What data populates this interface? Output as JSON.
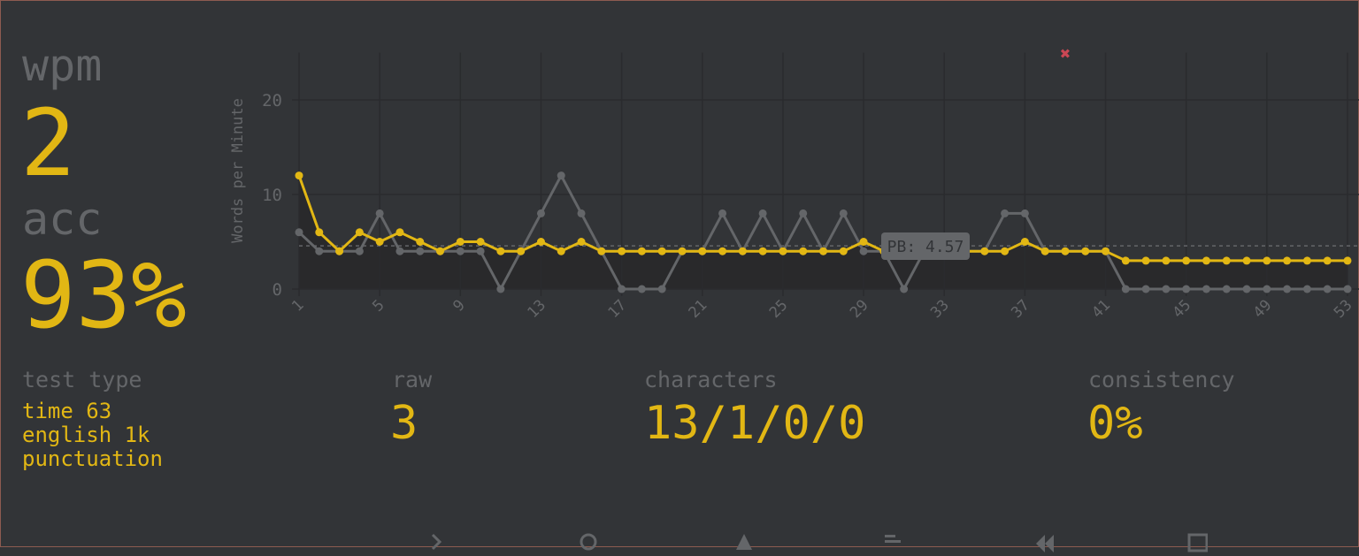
{
  "stats": {
    "wpm_label": "wpm",
    "wpm_value": "2",
    "acc_label": "acc",
    "acc_value": "93%",
    "test_type_label": "test type",
    "test_type_values": [
      "time 63",
      "english 1k",
      "punctuation"
    ],
    "raw_label": "raw",
    "raw_value": "3",
    "characters_label": "characters",
    "characters_value": "13/1/0/0",
    "consistency_label": "consistency",
    "consistency_value": "0%"
  },
  "colors": {
    "accent": "#e2b714",
    "sub": "#646669",
    "bg": "#323437",
    "error": "#ca4754"
  },
  "chart_data": {
    "type": "line",
    "ylabel": "Words per Minute",
    "ylim": [
      0,
      25
    ],
    "yticks": [
      0,
      10,
      20
    ],
    "xlim": [
      1,
      53
    ],
    "xticks": [
      1,
      5,
      9,
      13,
      17,
      21,
      25,
      29,
      33,
      37,
      41,
      45,
      49,
      53
    ],
    "x": [
      1,
      2,
      3,
      4,
      5,
      6,
      7,
      8,
      9,
      10,
      11,
      12,
      13,
      14,
      15,
      16,
      17,
      18,
      19,
      20,
      21,
      22,
      23,
      24,
      25,
      26,
      27,
      28,
      29,
      30,
      31,
      32,
      33,
      34,
      35,
      36,
      37,
      38,
      39,
      40,
      41,
      42,
      43,
      44,
      45,
      46,
      47,
      48,
      49,
      50,
      51,
      52,
      53
    ],
    "grid": true,
    "series": [
      {
        "role": "wpm",
        "color": "#e2b714",
        "values": [
          12,
          6,
          4,
          6,
          5,
          6,
          5,
          4,
          5,
          5,
          4,
          4,
          5,
          4,
          5,
          4,
          4,
          4,
          4,
          4,
          4,
          4,
          4,
          4,
          4,
          4,
          4,
          4,
          5,
          4,
          4,
          4,
          4,
          4,
          4,
          4,
          5,
          4,
          4,
          4,
          4,
          3,
          3,
          3,
          3,
          3,
          3,
          3,
          3,
          3,
          3,
          3,
          3
        ]
      },
      {
        "role": "raw",
        "color": "#646669",
        "values": [
          6,
          4,
          4,
          4,
          8,
          4,
          4,
          4,
          4,
          4,
          0,
          4,
          8,
          12,
          8,
          4,
          0,
          0,
          0,
          4,
          4,
          8,
          4,
          8,
          4,
          8,
          4,
          8,
          4,
          4,
          0,
          4,
          4,
          4,
          4,
          8,
          8,
          4,
          4,
          4,
          4,
          0,
          0,
          0,
          0,
          0,
          0,
          0,
          0,
          0,
          0,
          0,
          0
        ]
      }
    ],
    "errors": [
      {
        "x": 39
      }
    ],
    "annotation": {
      "label": "PB: 4.57",
      "value": 4.57
    }
  },
  "bottom_icons": [
    "chevron-right-icon",
    "redo-icon",
    "warning-icon",
    "align-left-icon",
    "backward-icon",
    "image-icon"
  ]
}
